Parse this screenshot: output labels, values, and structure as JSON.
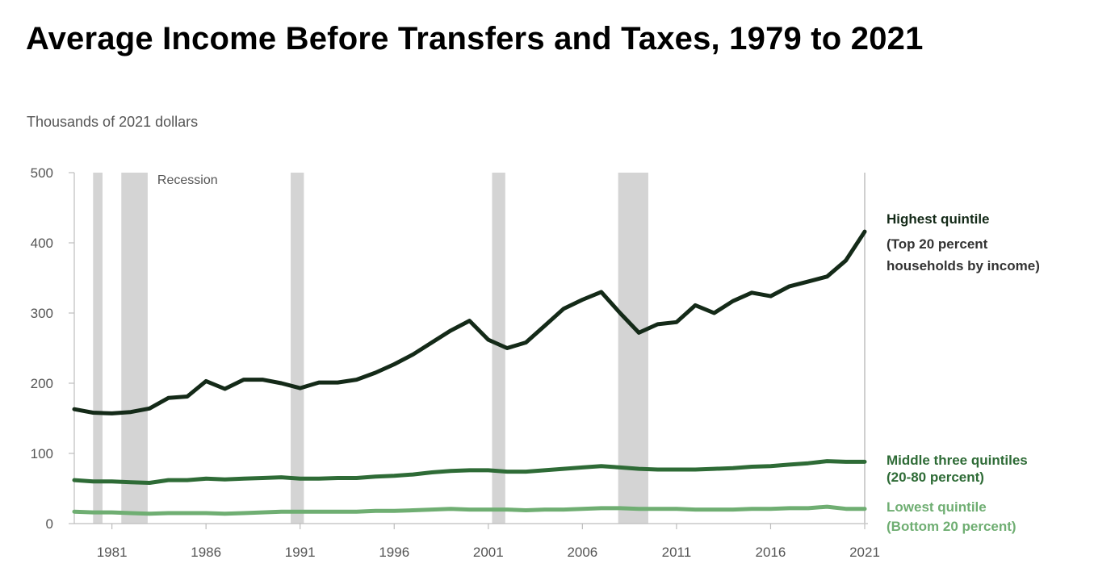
{
  "chart_data": {
    "type": "line",
    "title": "Average Income Before Transfers and Taxes, 1979 to 2021",
    "ylabel": "Thousands of 2021 dollars",
    "xlabel": "",
    "xlim": [
      1979,
      2021
    ],
    "ylim": [
      0,
      500
    ],
    "yticks": [
      0,
      100,
      200,
      300,
      400,
      500
    ],
    "ytick_labels": [
      "0",
      "100",
      "200",
      "300",
      "400",
      "500"
    ],
    "xticks": [
      1981,
      1986,
      1991,
      1996,
      2001,
      2006,
      2011,
      2016,
      2021
    ],
    "xtick_labels": [
      "1981",
      "1986",
      "1991",
      "1996",
      "2001",
      "2006",
      "2011",
      "2016",
      "2021"
    ],
    "recession_label": "Recession",
    "recessions": [
      [
        1980.0,
        1980.5
      ],
      [
        1981.5,
        1982.9
      ],
      [
        1990.5,
        1991.2
      ],
      [
        2001.2,
        2001.9
      ],
      [
        2007.9,
        2009.5
      ]
    ],
    "x": [
      1979,
      1980,
      1981,
      1982,
      1983,
      1984,
      1985,
      1986,
      1987,
      1988,
      1989,
      1990,
      1991,
      1992,
      1993,
      1994,
      1995,
      1996,
      1997,
      1998,
      1999,
      2000,
      2001,
      2002,
      2003,
      2004,
      2005,
      2006,
      2007,
      2008,
      2009,
      2010,
      2011,
      2012,
      2013,
      2014,
      2015,
      2016,
      2017,
      2018,
      2019,
      2020,
      2021
    ],
    "series": [
      {
        "name": "Highest quintile",
        "label_lines": [
          "Highest quintile",
          "(Top 20 percent",
          "households by income)"
        ],
        "color": "#142a18",
        "values": [
          163,
          158,
          157,
          159,
          164,
          179,
          181,
          203,
          192,
          205,
          205,
          200,
          193,
          201,
          201,
          205,
          215,
          227,
          241,
          258,
          275,
          289,
          262,
          250,
          258,
          282,
          306,
          319,
          330,
          300,
          272,
          284,
          287,
          311,
          300,
          317,
          329,
          324,
          338,
          345,
          352,
          375,
          416
        ]
      },
      {
        "name": "Middle three quintiles",
        "label_lines": [
          "Middle three quintiles",
          "(20-80 percent)"
        ],
        "color": "#2e6b36",
        "values": [
          62,
          60,
          60,
          59,
          58,
          62,
          62,
          64,
          63,
          64,
          65,
          66,
          64,
          64,
          65,
          65,
          67,
          68,
          70,
          73,
          75,
          76,
          76,
          74,
          74,
          76,
          78,
          80,
          82,
          80,
          78,
          77,
          77,
          77,
          78,
          79,
          81,
          82,
          84,
          86,
          89,
          88,
          88
        ]
      },
      {
        "name": "Lowest quintile",
        "label_lines": [
          "Lowest quintile",
          "(Bottom 20 percent)"
        ],
        "color": "#6fae72",
        "values": [
          17,
          16,
          16,
          15,
          14,
          15,
          15,
          15,
          14,
          15,
          16,
          17,
          17,
          17,
          17,
          17,
          18,
          18,
          19,
          20,
          21,
          20,
          20,
          20,
          19,
          20,
          20,
          21,
          22,
          22,
          21,
          21,
          21,
          20,
          20,
          20,
          21,
          21,
          22,
          22,
          24,
          21,
          21
        ]
      }
    ]
  }
}
